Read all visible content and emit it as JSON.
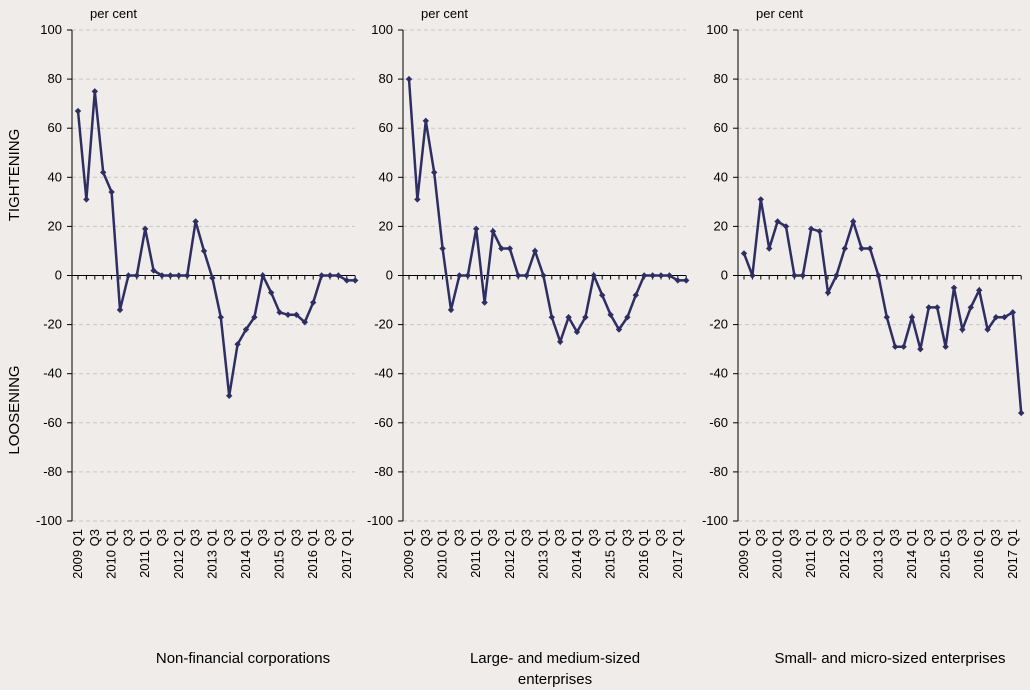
{
  "chart_data": [
    {
      "type": "line",
      "title": "Non-financial corporations",
      "unit": "per cent",
      "y_labels": [
        "TIGHTENING",
        "LOOSENING"
      ],
      "categories": [
        "2009 Q1",
        null,
        "Q3",
        null,
        "2010 Q1",
        null,
        "Q3",
        null,
        "2011 Q1",
        null,
        "Q3",
        null,
        "2012 Q1",
        null,
        "Q3",
        null,
        "2013 Q1",
        null,
        "Q3",
        null,
        "2014 Q1",
        null,
        "Q3",
        null,
        "2015 Q1",
        null,
        "Q3",
        null,
        "2016 Q1",
        null,
        "Q3",
        null,
        "2017 Q1",
        null
      ],
      "values": [
        67,
        31,
        75,
        42,
        34,
        -14,
        0,
        0,
        19,
        2,
        0,
        0,
        0,
        0,
        22,
        10,
        -1,
        -17,
        -49,
        -28,
        -22,
        -17,
        0,
        -7,
        -15,
        -16,
        -16,
        -19,
        -11,
        0,
        0,
        0,
        -2,
        -2
      ],
      "color": "#2f2e62",
      "ylim": [
        -100,
        100
      ],
      "yticks": [
        -100,
        -80,
        -60,
        -40,
        -20,
        0,
        20,
        40,
        60,
        80,
        100
      ],
      "grid": true
    },
    {
      "type": "line",
      "title": "Large- and medium-sized enterprises",
      "unit": "per cent",
      "categories": [
        "2009 Q1",
        null,
        "Q3",
        null,
        "2010 Q1",
        null,
        "Q3",
        null,
        "2011 Q1",
        null,
        "Q3",
        null,
        "2012 Q1",
        null,
        "Q3",
        null,
        "2013 Q1",
        null,
        "Q3",
        null,
        "2014 Q1",
        null,
        "Q3",
        null,
        "2015 Q1",
        null,
        "Q3",
        null,
        "2016 Q1",
        null,
        "Q3",
        null,
        "2017 Q1",
        null
      ],
      "values": [
        80,
        31,
        63,
        42,
        11,
        -14,
        0,
        0,
        19,
        -11,
        18,
        11,
        11,
        0,
        0,
        10,
        0,
        -17,
        -27,
        -17,
        -23,
        -17,
        0,
        -8,
        -16,
        -22,
        -17,
        -8,
        0,
        0,
        0,
        0,
        -2,
        -2
      ],
      "color": "#2f2e62",
      "ylim": [
        -100,
        100
      ],
      "yticks": [
        -100,
        -80,
        -60,
        -40,
        -20,
        0,
        20,
        40,
        60,
        80,
        100
      ],
      "grid": true
    },
    {
      "type": "line",
      "title": "Small- and micro-sized enterprises",
      "unit": "per cent",
      "categories": [
        "2009 Q1",
        null,
        "Q3",
        null,
        "2010 Q1",
        null,
        "Q3",
        null,
        "2011 Q1",
        null,
        "Q3",
        null,
        "2012 Q1",
        null,
        "Q3",
        null,
        "2013 Q1",
        null,
        "Q3",
        null,
        "2014 Q1",
        null,
        "Q3",
        null,
        "2015 Q1",
        null,
        "Q3",
        null,
        "2016 Q1",
        null,
        "Q3",
        null,
        "2017 Q1",
        null
      ],
      "values": [
        9,
        0,
        31,
        11,
        22,
        20,
        0,
        0,
        19,
        18,
        -7,
        0,
        11,
        22,
        11,
        11,
        0,
        -17,
        -29,
        -29,
        -17,
        -30,
        -13,
        -13,
        -29,
        -5,
        -22,
        -13,
        -6,
        -22,
        -17,
        -17,
        -15,
        -56
      ],
      "color": "#2f2e62",
      "ylim": [
        -100,
        100
      ],
      "yticks": [
        -100,
        -80,
        -60,
        -40,
        -20,
        0,
        20,
        40,
        60,
        80,
        100
      ],
      "grid": true
    }
  ]
}
